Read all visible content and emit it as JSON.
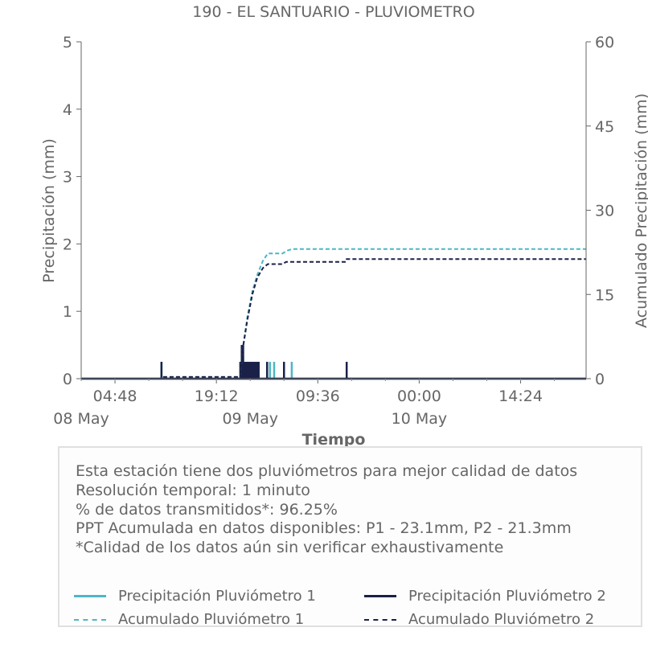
{
  "chart_data": {
    "type": "line",
    "title": "190 - EL SANTUARIO - PLUVIOMETRO",
    "xlabel": "Tiempo",
    "ylabel": "Precipitación (mm)",
    "y2label": "Acumulado Precipitación (mm)",
    "ylim": [
      0,
      5
    ],
    "y2lim": [
      0,
      60
    ],
    "yticks": [
      "0",
      "1",
      "2",
      "3",
      "4",
      "5"
    ],
    "y2ticks": [
      "0",
      "15",
      "30",
      "45",
      "60"
    ],
    "xrange_hours": [
      0,
      71.7
    ],
    "xticks": [
      {
        "hour": 4.8,
        "label": "04:48"
      },
      {
        "hour": 19.2,
        "label": "19:12"
      },
      {
        "hour": 33.6,
        "label": "09:36"
      },
      {
        "hour": 48.0,
        "label": "00:00"
      },
      {
        "hour": 62.4,
        "label": "14:24"
      }
    ],
    "date_labels": [
      {
        "hour": 0,
        "label": "08 May"
      },
      {
        "hour": 24,
        "label": "09 May"
      },
      {
        "hour": 48,
        "label": "10 May"
      }
    ],
    "grid": false,
    "series": [
      {
        "name": "Precipitación Pluviómetro 1",
        "axis": "left",
        "style": "solid",
        "color": "#4db6c4",
        "points": [
          [
            11.4,
            0.25
          ],
          [
            22.6,
            0.25
          ],
          [
            23.5,
            0.25
          ],
          [
            24.0,
            0.25
          ],
          [
            25.1,
            0.25
          ],
          [
            26.8,
            0.25
          ],
          [
            27.4,
            0.25
          ],
          [
            29.9,
            0.25
          ]
        ]
      },
      {
        "name": "Precipitación Pluviómetro 2",
        "axis": "left",
        "style": "solid",
        "color": "#1a2148",
        "points": [
          [
            11.4,
            0.25
          ],
          [
            22.6,
            0.25
          ],
          [
            22.7,
            0.25
          ],
          [
            22.8,
            0.5
          ],
          [
            22.9,
            0.25
          ],
          [
            23.0,
            0.5
          ],
          [
            23.2,
            0.25
          ],
          [
            23.4,
            0.25
          ],
          [
            23.6,
            0.25
          ],
          [
            23.8,
            0.25
          ],
          [
            24.0,
            0.25
          ],
          [
            24.2,
            0.25
          ],
          [
            24.4,
            0.25
          ],
          [
            24.6,
            0.25
          ],
          [
            24.8,
            0.25
          ],
          [
            25.0,
            0.25
          ],
          [
            25.2,
            0.25
          ],
          [
            26.4,
            0.25
          ],
          [
            28.8,
            0.25
          ],
          [
            37.7,
            0.25
          ]
        ]
      },
      {
        "name": "Acumulado Pluviómetro 1",
        "axis": "right",
        "style": "dashed",
        "color": "#4db6c4",
        "points": [
          [
            0,
            0
          ],
          [
            11.4,
            0
          ],
          [
            11.4,
            0.3
          ],
          [
            22.6,
            0.3
          ],
          [
            22.9,
            5
          ],
          [
            23.6,
            11
          ],
          [
            24.3,
            15.5
          ],
          [
            25.0,
            18.5
          ],
          [
            25.8,
            21
          ],
          [
            26.5,
            22.3
          ],
          [
            28.6,
            22.3
          ],
          [
            29.2,
            22.8
          ],
          [
            30.0,
            23.1
          ],
          [
            71.7,
            23.1
          ]
        ]
      },
      {
        "name": "Acumulado Pluviómetro 2",
        "axis": "right",
        "style": "dashed",
        "color": "#1a2148",
        "points": [
          [
            0,
            0
          ],
          [
            11.4,
            0
          ],
          [
            11.4,
            0.3
          ],
          [
            22.6,
            0.3
          ],
          [
            22.9,
            5
          ],
          [
            23.6,
            10.5
          ],
          [
            24.3,
            15
          ],
          [
            25.0,
            18
          ],
          [
            25.8,
            19.7
          ],
          [
            26.5,
            20.4
          ],
          [
            28.6,
            20.4
          ],
          [
            29.1,
            20.8
          ],
          [
            37.6,
            20.8
          ],
          [
            37.7,
            21.3
          ],
          [
            71.7,
            21.3
          ]
        ]
      }
    ]
  },
  "info": {
    "lines": [
      "Esta estación tiene dos pluviómetros para mejor calidad de datos",
      "Resolución temporal: 1 minuto",
      "% de datos transmitidos*: 96.25%",
      "PPT Acumulada en datos disponibles: P1 - 23.1mm, P2 - 21.3mm",
      "*Calidad de los datos aún sin verificar exhaustivamente"
    ]
  },
  "legend": [
    {
      "label": "Precipitación Pluviómetro 1",
      "color": "#4db6c4",
      "style": "solid"
    },
    {
      "label": "Precipitación Pluviómetro 2",
      "color": "#1a2148",
      "style": "solid"
    },
    {
      "label": "Acumulado Pluviómetro 1",
      "color": "#4db6c4",
      "style": "dashed"
    },
    {
      "label": "Acumulado Pluviómetro 2",
      "color": "#1a2148",
      "style": "dashed"
    }
  ]
}
